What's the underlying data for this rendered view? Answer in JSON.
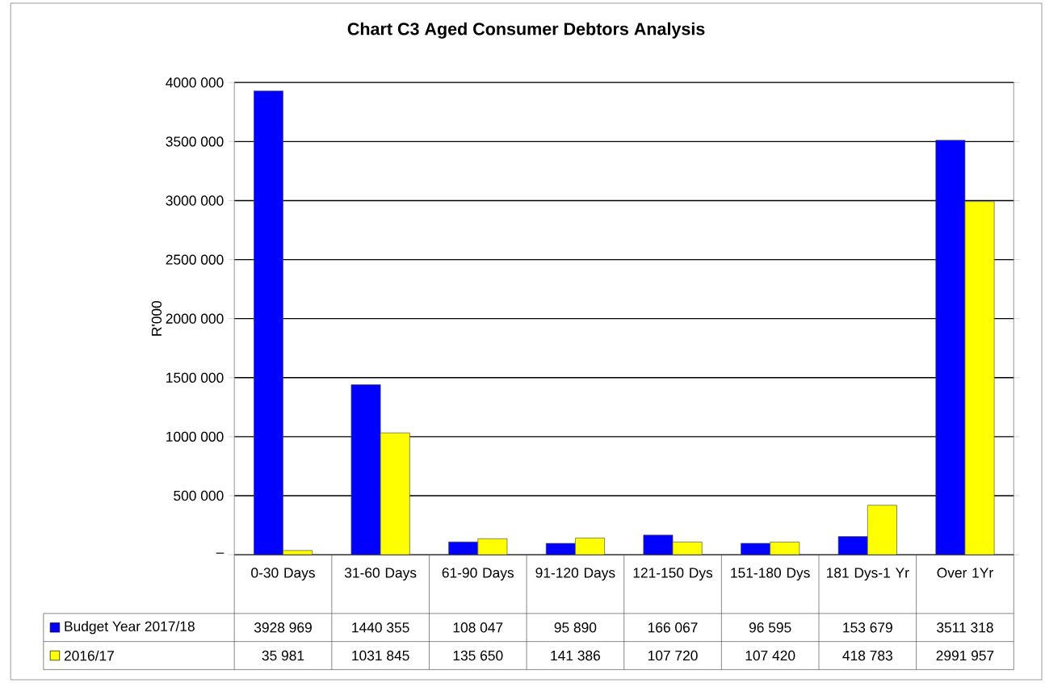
{
  "chart_data": {
    "type": "bar",
    "title": "Chart C3 Aged Consumer Debtors Analysis",
    "ylabel": "R'000",
    "categories": [
      "0-30 Days",
      "31-60 Days",
      "61-90 Days",
      "91-120 Days",
      "121-150 Dys",
      "151-180 Dys",
      "181 Dys-1 Yr",
      "Over 1Yr"
    ],
    "series": [
      {
        "name": "Budget Year 2017/18",
        "color": "#0000ff",
        "values": [
          3928969,
          1440355,
          108047,
          95890,
          166067,
          96595,
          153679,
          3511318
        ],
        "value_labels": [
          "3928 969",
          "1440 355",
          "108 047",
          "95 890",
          "166 067",
          "96 595",
          "153 679",
          "3511 318"
        ]
      },
      {
        "name": "2016/17",
        "color": "#ffff00",
        "values": [
          35981,
          1031845,
          135650,
          141386,
          107720,
          107420,
          418783,
          2991957
        ],
        "value_labels": [
          "35 981",
          "1031 845",
          "135 650",
          "141 386",
          "107 720",
          "107 420",
          "418 783",
          "2991 957"
        ]
      }
    ],
    "ylim": [
      0,
      4000000
    ],
    "yticks": [
      {
        "value": 0,
        "label": "–"
      },
      {
        "value": 500000,
        "label": "500 000"
      },
      {
        "value": 1000000,
        "label": "1000 000"
      },
      {
        "value": 1500000,
        "label": "1500 000"
      },
      {
        "value": 2000000,
        "label": "2000 000"
      },
      {
        "value": 2500000,
        "label": "2500 000"
      },
      {
        "value": 3000000,
        "label": "3000 000"
      },
      {
        "value": 3500000,
        "label": "3500 000"
      },
      {
        "value": 4000000,
        "label": "4000 000"
      }
    ],
    "grid": "y",
    "legend": "bottom left"
  }
}
